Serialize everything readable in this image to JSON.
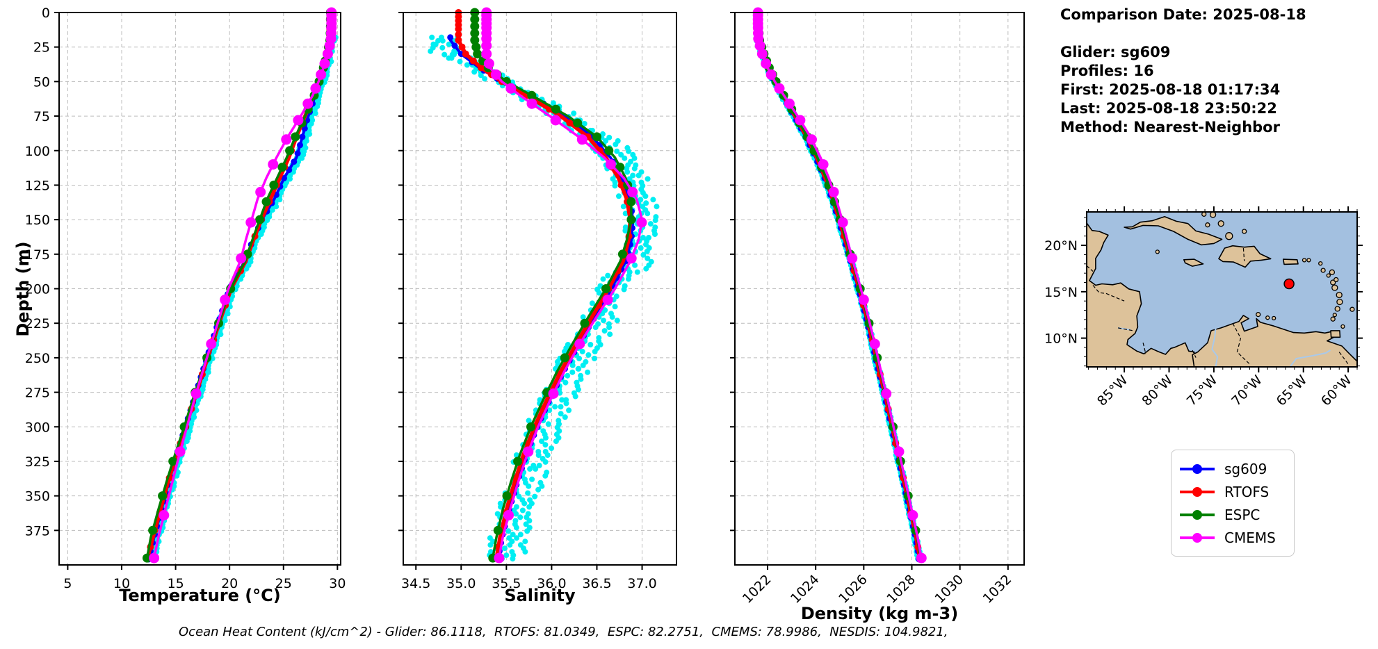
{
  "info_panel": {
    "comparison_date": "Comparison Date: 2025-08-18",
    "glider": "Glider: sg609",
    "profiles": "Profiles: 16",
    "first": "First: 2025-08-18 01:17:34",
    "last": "Last: 2025-08-18 23:50:22",
    "method": "Method: Nearest-Neighbor"
  },
  "caption": "Ocean Heat Content (kJ/cm^2) - Glider: 86.1118,  RTOFS: 81.0349,  ESPC: 82.2751,  CMEMS: 78.9986,  NESDIS: 104.9821,",
  "legend": {
    "items": [
      {
        "label": "sg609",
        "color": "#0000ff"
      },
      {
        "label": "RTOFS",
        "color": "#ff0000"
      },
      {
        "label": "ESPC",
        "color": "#008000"
      },
      {
        "label": "CMEMS",
        "color": "#ff00ff"
      }
    ]
  },
  "chart_data": {
    "type": "line",
    "ylabel": "Depth (m)",
    "grid": true,
    "depth_ticks": [
      0,
      25,
      50,
      75,
      100,
      125,
      150,
      175,
      200,
      225,
      250,
      275,
      300,
      325,
      350,
      375
    ],
    "depth_range": [
      0,
      400
    ],
    "panels": [
      {
        "id": "temperature",
        "xlabel": "Temperature (°C)",
        "ticks": [
          5,
          10,
          15,
          20,
          25,
          30
        ],
        "range": [
          4.2,
          30.3
        ],
        "decimals": 0
      },
      {
        "id": "salinity",
        "xlabel": "Salinity",
        "ticks": [
          34.5,
          35.0,
          35.5,
          36.0,
          36.5,
          37.0
        ],
        "range": [
          34.36,
          37.38
        ],
        "decimals": 1
      },
      {
        "id": "density",
        "xlabel": "Density (kg m-3)",
        "ticks": [
          1022,
          1024,
          1026,
          1028,
          1030,
          1032
        ],
        "range": [
          1020.64,
          1032.67
        ],
        "decimals": 0,
        "tick_rotation": 45
      }
    ],
    "depths": [
      0,
      10,
      20,
      30,
      40,
      50,
      60,
      75,
      90,
      105,
      120,
      135,
      150,
      165,
      180,
      200,
      220,
      240,
      260,
      280,
      300,
      320,
      340,
      360,
      380,
      395
    ],
    "series": [
      {
        "name": "sg609",
        "color": "#0000ff",
        "start_depth": 18,
        "marker_step": 6,
        "marker_r": 4.5,
        "line_w": 4,
        "temperature": [
          29.3,
          29.3,
          29.25,
          29.0,
          28.7,
          28.35,
          27.95,
          27.3,
          26.75,
          26.2,
          25.05,
          24.15,
          23.0,
          22.15,
          21.4,
          20.0,
          19.15,
          18.3,
          17.5,
          16.7,
          15.9,
          15.1,
          14.35,
          13.7,
          13.0,
          12.5
        ],
        "salinity": [
          34.88,
          34.88,
          34.88,
          35.0,
          35.2,
          35.45,
          35.75,
          36.15,
          36.45,
          36.65,
          36.78,
          36.86,
          36.9,
          36.88,
          36.82,
          36.66,
          36.48,
          36.3,
          36.13,
          35.98,
          35.84,
          35.72,
          35.62,
          35.53,
          35.45,
          35.41
        ],
        "density": [
          1021.55,
          1021.55,
          1021.6,
          1021.78,
          1022.0,
          1022.28,
          1022.6,
          1023.1,
          1023.58,
          1024.0,
          1024.37,
          1024.68,
          1024.95,
          1025.2,
          1025.45,
          1025.78,
          1026.08,
          1026.36,
          1026.62,
          1026.9,
          1027.15,
          1027.4,
          1027.65,
          1027.9,
          1028.15,
          1028.3
        ]
      },
      {
        "name": "RTOFS",
        "color": "#ff0000",
        "marker_r": 5,
        "line_w": 5.5,
        "marker_depths": [
          0,
          3,
          6,
          9,
          12,
          16,
          20,
          25,
          30,
          35,
          40,
          45,
          50,
          60,
          70,
          80,
          90,
          100,
          112,
          125,
          137,
          150,
          162,
          175,
          187,
          200,
          212,
          225,
          237,
          250,
          262,
          275,
          287,
          300,
          312,
          325,
          337,
          350,
          362,
          375,
          387,
          395
        ],
        "temperature": [
          29.3,
          29.3,
          29.25,
          29.0,
          28.65,
          28.25,
          27.8,
          27.0,
          26.2,
          25.5,
          24.65,
          23.8,
          22.95,
          22.2,
          21.5,
          20.15,
          19.25,
          18.4,
          17.55,
          16.75,
          15.95,
          15.1,
          14.3,
          13.6,
          12.9,
          12.4
        ],
        "salinity": [
          34.97,
          34.97,
          34.97,
          35.05,
          35.22,
          35.45,
          35.72,
          36.1,
          36.4,
          36.6,
          36.74,
          36.83,
          36.87,
          36.85,
          36.79,
          36.63,
          36.45,
          36.27,
          36.1,
          35.95,
          35.81,
          35.69,
          35.59,
          35.5,
          35.43,
          35.39
        ],
        "density": [
          1021.58,
          1021.58,
          1021.63,
          1021.8,
          1022.03,
          1022.32,
          1022.64,
          1023.14,
          1023.62,
          1024.04,
          1024.4,
          1024.71,
          1024.98,
          1025.23,
          1025.48,
          1025.81,
          1026.11,
          1026.39,
          1026.65,
          1026.93,
          1027.18,
          1027.43,
          1027.68,
          1027.93,
          1028.18,
          1028.33
        ]
      },
      {
        "name": "ESPC",
        "color": "#008000",
        "marker_r": 6.5,
        "line_w": 3.5,
        "marker_depths": [
          0,
          5,
          10,
          15,
          20,
          25,
          30,
          35,
          40,
          45,
          50,
          60,
          70,
          80,
          90,
          100,
          112,
          125,
          137,
          150,
          175,
          200,
          225,
          250,
          275,
          300,
          325,
          350,
          375,
          395
        ],
        "temperature": [
          29.35,
          29.35,
          29.3,
          29.05,
          28.7,
          28.3,
          27.85,
          27.0,
          26.1,
          25.3,
          24.4,
          23.5,
          22.8,
          22.1,
          21.45,
          20.1,
          19.2,
          18.35,
          17.45,
          16.6,
          15.8,
          14.95,
          14.15,
          13.4,
          12.7,
          12.35
        ],
        "salinity": [
          35.15,
          35.15,
          35.15,
          35.18,
          35.3,
          35.5,
          35.78,
          36.18,
          36.5,
          36.7,
          36.82,
          36.88,
          36.88,
          36.83,
          36.76,
          36.6,
          36.41,
          36.23,
          36.06,
          35.91,
          35.77,
          35.65,
          35.55,
          35.46,
          35.39,
          35.35
        ],
        "density": [
          1021.62,
          1021.62,
          1021.67,
          1021.85,
          1022.07,
          1022.35,
          1022.67,
          1023.17,
          1023.65,
          1024.07,
          1024.44,
          1024.75,
          1025.02,
          1025.27,
          1025.52,
          1025.85,
          1026.15,
          1026.43,
          1026.69,
          1026.97,
          1027.22,
          1027.47,
          1027.72,
          1027.97,
          1028.22,
          1028.37
        ]
      },
      {
        "name": "CMEMS",
        "color": "#ff00ff",
        "marker_r": 7.5,
        "line_w": 3.5,
        "marker_depths": [
          0,
          2,
          5,
          8,
          11,
          15,
          19,
          24,
          30,
          37,
          45,
          55,
          66,
          78,
          92,
          110,
          130,
          152,
          178,
          208,
          240,
          276,
          318,
          364,
          395
        ],
        "temperature": [
          29.45,
          29.45,
          29.4,
          29.1,
          28.7,
          28.25,
          27.7,
          26.6,
          25.4,
          24.35,
          23.4,
          22.6,
          22.05,
          21.5,
          21.0,
          19.9,
          19.1,
          18.3,
          17.5,
          16.75,
          16.05,
          15.35,
          14.7,
          14.05,
          13.4,
          13.0
        ],
        "salinity": [
          35.28,
          35.28,
          35.28,
          35.28,
          35.32,
          35.45,
          35.65,
          35.98,
          36.3,
          36.58,
          36.8,
          36.94,
          37.0,
          36.96,
          36.87,
          36.7,
          36.5,
          36.31,
          36.14,
          35.99,
          35.85,
          35.73,
          35.63,
          35.54,
          35.46,
          35.42
        ],
        "density": [
          1021.6,
          1021.6,
          1021.62,
          1021.78,
          1022.0,
          1022.3,
          1022.68,
          1023.25,
          1023.78,
          1024.2,
          1024.55,
          1024.85,
          1025.1,
          1025.32,
          1025.55,
          1025.88,
          1026.18,
          1026.46,
          1026.72,
          1026.99,
          1027.24,
          1027.49,
          1027.74,
          1027.99,
          1028.24,
          1028.4
        ]
      }
    ],
    "raw_scatter": {
      "name": "glider-raw-observations",
      "color": "#00eef2",
      "profiles": 3,
      "marker_r": 4,
      "start_depth": 18
    }
  },
  "map": {
    "lat_labels": [
      "20°N",
      "15°N",
      "10°N"
    ],
    "lat_values": [
      20,
      15,
      10
    ],
    "lon_labels": [
      "85°W",
      "80°W",
      "75°W",
      "70°W",
      "65°W",
      "60°W"
    ],
    "lon_values": [
      85,
      80,
      75,
      70,
      65,
      60
    ],
    "extent": {
      "west": 89.2,
      "east": 59.0,
      "south": 6.9,
      "north": 23.6
    },
    "marker": {
      "lon_w": 66.6,
      "lat_n": 15.85,
      "color": "#ff0000"
    },
    "sea_color": "#a3c0e0",
    "land_color": "#ddc29a"
  }
}
